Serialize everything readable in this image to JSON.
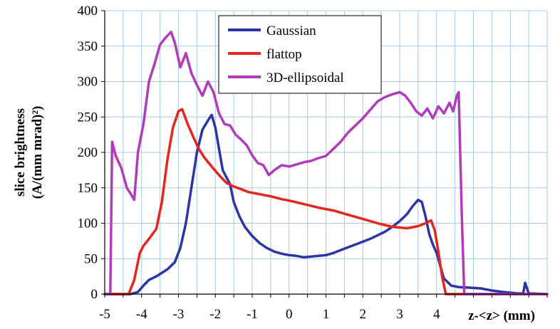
{
  "chart_data": {
    "type": "line",
    "title": "",
    "xlabel": "z-<z> (mm)",
    "ylabel_line1": "slice brightness",
    "ylabel_line2": "(A/(mm mrad)²)",
    "xlim": [
      -5,
      7
    ],
    "ylim": [
      0,
      400
    ],
    "xticks": [
      -5,
      -4,
      -3,
      -2,
      -1,
      0,
      1,
      2,
      3,
      4
    ],
    "yticks": [
      0,
      50,
      100,
      150,
      200,
      250,
      300,
      350,
      400
    ],
    "grid": true,
    "legend_position": "top-center",
    "series": [
      {
        "name": "Gaussian",
        "color": "#2b35a8",
        "points": [
          [
            -5,
            0
          ],
          [
            -4.3,
            0
          ],
          [
            -4.1,
            3
          ],
          [
            -3.95,
            12
          ],
          [
            -3.8,
            20
          ],
          [
            -3.6,
            25
          ],
          [
            -3.45,
            30
          ],
          [
            -3.3,
            35
          ],
          [
            -3.1,
            45
          ],
          [
            -2.95,
            65
          ],
          [
            -2.8,
            100
          ],
          [
            -2.65,
            150
          ],
          [
            -2.5,
            200
          ],
          [
            -2.35,
            232
          ],
          [
            -2.2,
            245
          ],
          [
            -2.1,
            253
          ],
          [
            -2.0,
            235
          ],
          [
            -1.9,
            205
          ],
          [
            -1.8,
            175
          ],
          [
            -1.7,
            165
          ],
          [
            -1.6,
            155
          ],
          [
            -1.5,
            130
          ],
          [
            -1.35,
            110
          ],
          [
            -1.2,
            95
          ],
          [
            -1.0,
            82
          ],
          [
            -0.8,
            72
          ],
          [
            -0.6,
            65
          ],
          [
            -0.4,
            60
          ],
          [
            -0.2,
            57
          ],
          [
            0,
            55
          ],
          [
            0.2,
            54
          ],
          [
            0.4,
            52
          ],
          [
            0.6,
            53
          ],
          [
            0.8,
            54
          ],
          [
            1.0,
            55
          ],
          [
            1.2,
            58
          ],
          [
            1.4,
            62
          ],
          [
            1.6,
            66
          ],
          [
            1.8,
            70
          ],
          [
            2.0,
            74
          ],
          [
            2.2,
            78
          ],
          [
            2.4,
            83
          ],
          [
            2.6,
            88
          ],
          [
            2.8,
            95
          ],
          [
            3.0,
            103
          ],
          [
            3.2,
            113
          ],
          [
            3.35,
            124
          ],
          [
            3.5,
            133
          ],
          [
            3.6,
            130
          ],
          [
            3.7,
            110
          ],
          [
            3.8,
            85
          ],
          [
            3.9,
            70
          ],
          [
            4.0,
            58
          ],
          [
            4.1,
            40
          ],
          [
            4.2,
            22
          ],
          [
            4.4,
            12
          ],
          [
            4.6,
            10
          ],
          [
            4.9,
            9
          ],
          [
            5.2,
            8
          ],
          [
            5.5,
            5
          ],
          [
            5.8,
            3
          ],
          [
            6.2,
            1
          ],
          [
            6.35,
            1
          ],
          [
            6.4,
            16
          ],
          [
            6.5,
            1
          ],
          [
            7,
            0
          ]
        ]
      },
      {
        "name": "flattop",
        "color": "#e3261e",
        "points": [
          [
            -5,
            0
          ],
          [
            -4.35,
            0
          ],
          [
            -4.2,
            20
          ],
          [
            -4.05,
            58
          ],
          [
            -3.95,
            68
          ],
          [
            -3.8,
            78
          ],
          [
            -3.6,
            92
          ],
          [
            -3.45,
            130
          ],
          [
            -3.3,
            190
          ],
          [
            -3.15,
            235
          ],
          [
            -3.0,
            258
          ],
          [
            -2.9,
            261
          ],
          [
            -2.75,
            240
          ],
          [
            -2.6,
            222
          ],
          [
            -2.45,
            205
          ],
          [
            -2.3,
            193
          ],
          [
            -2.1,
            180
          ],
          [
            -1.9,
            168
          ],
          [
            -1.7,
            157
          ],
          [
            -1.5,
            152
          ],
          [
            -1.3,
            148
          ],
          [
            -1.1,
            144
          ],
          [
            -0.8,
            141
          ],
          [
            -0.5,
            138
          ],
          [
            -0.2,
            134
          ],
          [
            0,
            132
          ],
          [
            0.4,
            127
          ],
          [
            0.8,
            122
          ],
          [
            1.2,
            118
          ],
          [
            1.6,
            112
          ],
          [
            2.0,
            106
          ],
          [
            2.4,
            100
          ],
          [
            2.8,
            95
          ],
          [
            3.2,
            93
          ],
          [
            3.5,
            96
          ],
          [
            3.7,
            100
          ],
          [
            3.85,
            104
          ],
          [
            3.95,
            90
          ],
          [
            4.05,
            60
          ],
          [
            4.15,
            25
          ],
          [
            4.25,
            0
          ],
          [
            7,
            0
          ]
        ]
      },
      {
        "name": "3D-ellipsoidal",
        "color": "#b03cba",
        "points": [
          [
            -5,
            0
          ],
          [
            -4.85,
            0
          ],
          [
            -4.8,
            215
          ],
          [
            -4.7,
            195
          ],
          [
            -4.55,
            178
          ],
          [
            -4.4,
            150
          ],
          [
            -4.3,
            142
          ],
          [
            -4.2,
            133
          ],
          [
            -4.1,
            200
          ],
          [
            -3.95,
            240
          ],
          [
            -3.8,
            300
          ],
          [
            -3.65,
            325
          ],
          [
            -3.5,
            352
          ],
          [
            -3.35,
            362
          ],
          [
            -3.2,
            370
          ],
          [
            -3.1,
            355
          ],
          [
            -2.95,
            320
          ],
          [
            -2.8,
            340
          ],
          [
            -2.65,
            312
          ],
          [
            -2.5,
            295
          ],
          [
            -2.35,
            280
          ],
          [
            -2.2,
            300
          ],
          [
            -2.05,
            285
          ],
          [
            -1.9,
            255
          ],
          [
            -1.75,
            240
          ],
          [
            -1.6,
            238
          ],
          [
            -1.45,
            225
          ],
          [
            -1.3,
            218
          ],
          [
            -1.15,
            210
          ],
          [
            -1.0,
            196
          ],
          [
            -0.85,
            185
          ],
          [
            -0.7,
            182
          ],
          [
            -0.55,
            168
          ],
          [
            -0.4,
            175
          ],
          [
            -0.2,
            182
          ],
          [
            0,
            180
          ],
          [
            0.2,
            183
          ],
          [
            0.4,
            186
          ],
          [
            0.6,
            188
          ],
          [
            0.8,
            192
          ],
          [
            1.0,
            195
          ],
          [
            1.2,
            205
          ],
          [
            1.4,
            215
          ],
          [
            1.6,
            228
          ],
          [
            1.8,
            238
          ],
          [
            2.0,
            248
          ],
          [
            2.2,
            260
          ],
          [
            2.4,
            272
          ],
          [
            2.6,
            278
          ],
          [
            2.8,
            282
          ],
          [
            3.0,
            285
          ],
          [
            3.15,
            280
          ],
          [
            3.3,
            270
          ],
          [
            3.45,
            258
          ],
          [
            3.6,
            252
          ],
          [
            3.75,
            262
          ],
          [
            3.9,
            248
          ],
          [
            4.05,
            265
          ],
          [
            4.2,
            255
          ],
          [
            4.35,
            270
          ],
          [
            4.45,
            258
          ],
          [
            4.55,
            280
          ],
          [
            4.6,
            285
          ],
          [
            4.68,
            120
          ],
          [
            4.75,
            0
          ],
          [
            7,
            0
          ]
        ]
      }
    ]
  }
}
